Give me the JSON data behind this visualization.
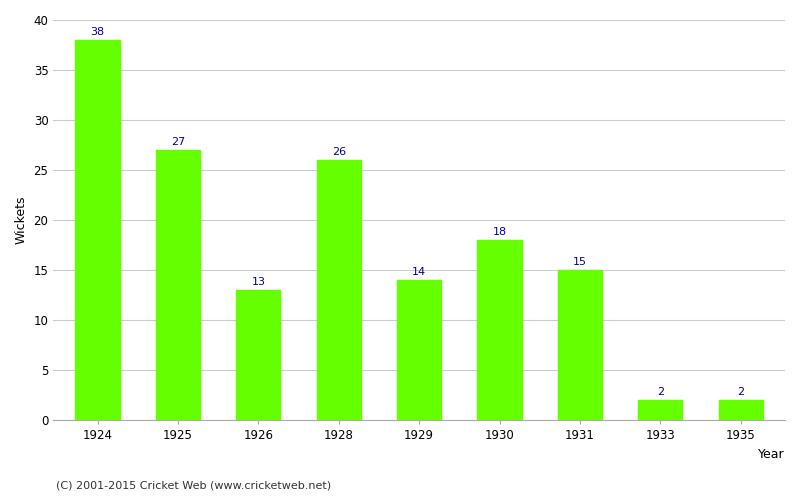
{
  "categories": [
    "1924",
    "1925",
    "1926",
    "1928",
    "1929",
    "1930",
    "1931",
    "1933",
    "1935"
  ],
  "values": [
    38,
    27,
    13,
    26,
    14,
    18,
    15,
    2,
    2
  ],
  "bar_color": "#66ff00",
  "label_color": "#000099",
  "xlabel": "Year",
  "ylabel": "Wickets",
  "ylim": [
    0,
    40
  ],
  "yticks": [
    0,
    5,
    10,
    15,
    20,
    25,
    30,
    35,
    40
  ],
  "grid_color": "#cccccc",
  "background_color": "#ffffff",
  "footer_text": "(C) 2001-2015 Cricket Web (www.cricketweb.net)",
  "label_fontsize": 8,
  "axis_label_fontsize": 9,
  "tick_fontsize": 8.5,
  "footer_fontsize": 8,
  "bar_width": 0.55
}
